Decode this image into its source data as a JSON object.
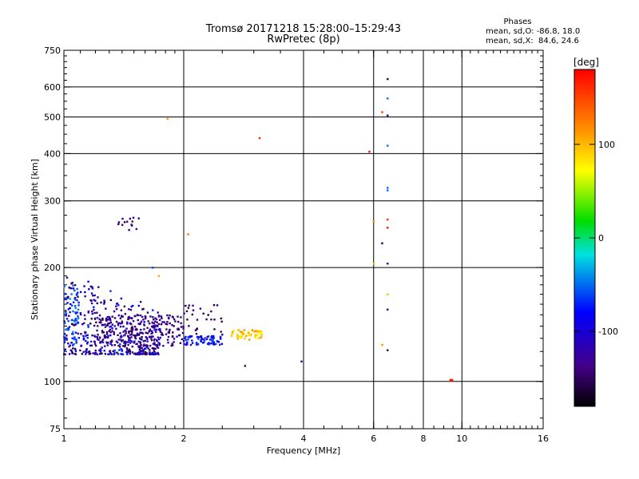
{
  "header": {
    "title": "Tromsø 20171218 15:28:00–15:29:43",
    "subtitle": "RwPretec (8p)"
  },
  "phases_box": {
    "title": "Phases",
    "line_o": "mean, sd,O: -86.8, 18.0",
    "line_x": "mean, sd,X:  84.6, 24.6"
  },
  "colorbar": {
    "label": "[deg]",
    "ticks": [
      "100",
      "0",
      "-100"
    ],
    "tick_values": [
      100,
      0,
      -100
    ],
    "range": [
      -180,
      180
    ]
  },
  "chart_data": {
    "type": "scatter",
    "title": "Tromsø 20171218 15:28:00–15:29:43",
    "subtitle": "RwPretec (8p)",
    "xlabel": "Frequency [MHz]",
    "ylabel": "Stationary phase Virtual Height [km]",
    "x_scale": "log",
    "y_scale": "log",
    "xlim": [
      1,
      16
    ],
    "ylim": [
      75,
      750
    ],
    "x_ticks": [
      1,
      2,
      4,
      6,
      8,
      10,
      16
    ],
    "x_tick_labels": [
      "1",
      "2",
      "4",
      "6",
      "8",
      "10",
      "16"
    ],
    "y_ticks": [
      75,
      100,
      200,
      300,
      400,
      500,
      600,
      750
    ],
    "y_tick_labels": [
      "75",
      "100",
      "200",
      "300",
      "400",
      "500",
      "600",
      "750"
    ],
    "x_grid": [
      2,
      4,
      6,
      8,
      10
    ],
    "y_grid": [
      100,
      200,
      300,
      400,
      500,
      600
    ],
    "color_scale": "phase [deg]",
    "clusters": [
      {
        "name": "",
        "x": [
          1.0,
          1.75
        ],
        "y": [
          118,
          195
        ],
        "phase": -110,
        "spread": 45
      },
      {
        "name": "",
        "x": [
          1.2,
          2.0
        ],
        "y": [
          124,
          150
        ],
        "phase": -125,
        "spread": 20
      },
      {
        "name": "",
        "x": [
          1.0,
          1.1
        ],
        "y": [
          125,
          180
        ],
        "phase": -60,
        "spread": 20
      },
      {
        "name": "",
        "x": [
          2.0,
          2.5
        ],
        "y": [
          125,
          132
        ],
        "phase": -80,
        "spread": 20
      },
      {
        "name": "",
        "x": [
          2.0,
          2.5
        ],
        "y": [
          130,
          160
        ],
        "phase": -135,
        "spread": 15
      },
      {
        "name": "",
        "x": [
          2.6,
          3.15
        ],
        "y": [
          129,
          137
        ],
        "phase": 95,
        "spread": 25
      },
      {
        "name": "",
        "x": [
          1.35,
          1.55
        ],
        "y": [
          250,
          272
        ],
        "phase": -128,
        "spread": 15
      }
    ],
    "points": [
      {
        "x": 3.1,
        "y": 440,
        "phase": 170
      },
      {
        "x": 2.05,
        "y": 245,
        "phase": 130
      },
      {
        "x": 1.82,
        "y": 495,
        "phase": 115
      },
      {
        "x": 1.67,
        "y": 200,
        "phase": -60
      },
      {
        "x": 1.73,
        "y": 190,
        "phase": 110
      },
      {
        "x": 2.85,
        "y": 110,
        "phase": -140
      },
      {
        "x": 3.95,
        "y": 113,
        "phase": -120
      },
      {
        "x": 5.85,
        "y": 405,
        "phase": 175
      },
      {
        "x": 6.0,
        "y": 265,
        "phase": 120
      },
      {
        "x": 6.0,
        "y": 205,
        "phase": 100
      },
      {
        "x": 6.3,
        "y": 515,
        "phase": 150
      },
      {
        "x": 6.3,
        "y": 232,
        "phase": -150
      },
      {
        "x": 6.3,
        "y": 125,
        "phase": 120
      },
      {
        "x": 6.5,
        "y": 630,
        "phase": -150
      },
      {
        "x": 6.5,
        "y": 560,
        "phase": -50
      },
      {
        "x": 6.5,
        "y": 505,
        "phase": -130
      },
      {
        "x": 6.5,
        "y": 420,
        "phase": -50
      },
      {
        "x": 6.5,
        "y": 325,
        "phase": -50
      },
      {
        "x": 6.5,
        "y": 320,
        "phase": -50
      },
      {
        "x": 6.5,
        "y": 268,
        "phase": 160
      },
      {
        "x": 6.5,
        "y": 255,
        "phase": 175
      },
      {
        "x": 6.5,
        "y": 205,
        "phase": -110
      },
      {
        "x": 6.5,
        "y": 170,
        "phase": 50
      },
      {
        "x": 6.5,
        "y": 155,
        "phase": -110
      },
      {
        "x": 6.5,
        "y": 121,
        "phase": -140
      },
      {
        "x": 9.35,
        "y": 101,
        "phase": 165
      },
      {
        "x": 9.45,
        "y": 101,
        "phase": 165
      },
      {
        "x": 9.4,
        "y": 100.5,
        "phase": 175
      }
    ]
  }
}
